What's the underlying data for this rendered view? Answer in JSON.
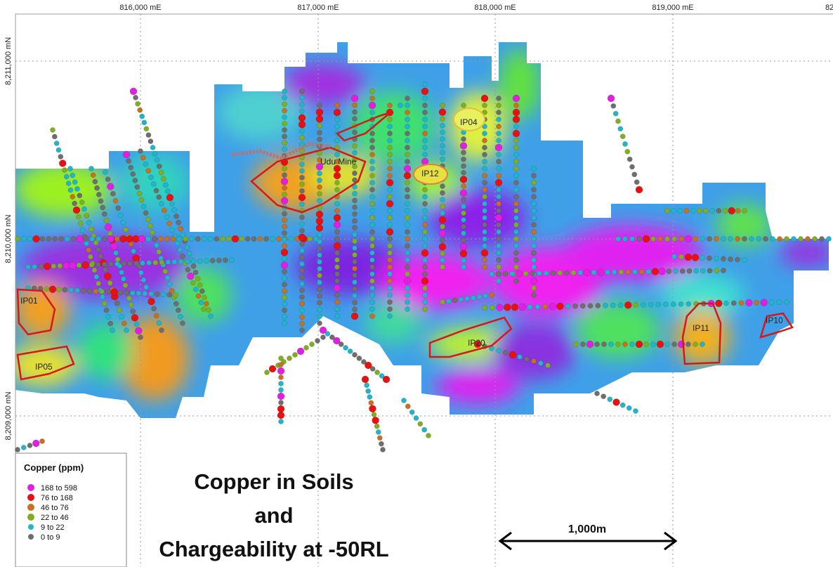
{
  "map": {
    "eastings": [
      "816,000 mE",
      "817,000 mE",
      "818,000 mE",
      "819,000 mE",
      "82"
    ],
    "northings": [
      "8,211,000 mN",
      "8,210,000 mN",
      "8,209,000 mN"
    ],
    "labels": [
      "IP01",
      "IP05",
      "Udu Mine",
      "IP04",
      "IP12",
      "IP20",
      "IP11",
      "IP10"
    ],
    "legend": {
      "title": "Copper (ppm)",
      "items": [
        {
          "label": "168 to 598",
          "color": "#e020e0"
        },
        {
          "label": "76 to 168",
          "color": "#e81010"
        },
        {
          "label": "46 to  76",
          "color": "#c8701e"
        },
        {
          "label": "22 to  46",
          "color": "#7fae22"
        },
        {
          "label": "9 to  22",
          "color": "#22b4c8"
        },
        {
          "label": "0 to   9",
          "color": "#6e6e6e"
        }
      ]
    },
    "title": [
      "Copper in Soils",
      "and",
      "Chargeability at -50RL"
    ],
    "scale_bar": "1,000m"
  }
}
